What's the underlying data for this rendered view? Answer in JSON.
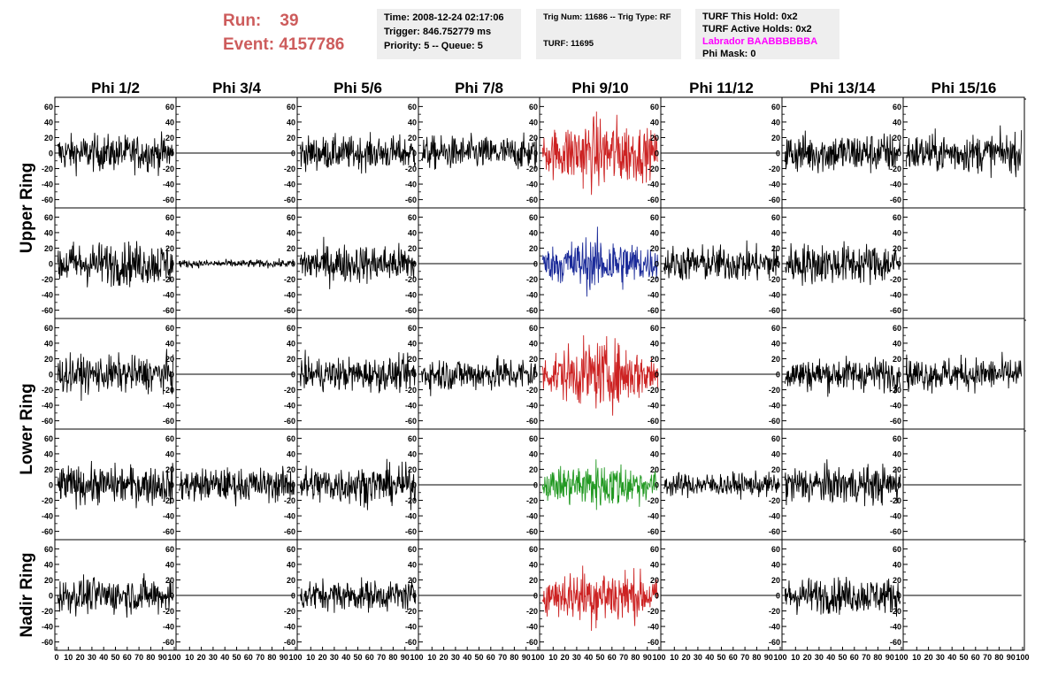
{
  "header": {
    "run_label": "Run:",
    "run_value": "39",
    "event_label": "Event:",
    "event_value": "4157786"
  },
  "info_time": {
    "time": "Time: 2008-12-24 02:17:06",
    "trigger": "Trigger: 846.752779 ms",
    "priority": "Priority: 5 -- Queue: 5"
  },
  "info_trig": {
    "trig": "Trig Num: 11686 -- Trig Type: RF",
    "turf": "TURF: 11695"
  },
  "info_turf": {
    "this_hold": "TURF This Hold: 0x2",
    "active_holds": "TURF Active Holds: 0x2",
    "labrador": "Labrador BAABBBBBBA",
    "phi_mask": "Phi Mask: 0"
  },
  "colors": {
    "header_red": "#cd5c5c",
    "labrador": "#ff00ff",
    "trace_black": "#000000",
    "trace_red": "#cc2222",
    "trace_blue": "#1a2a99",
    "trace_green": "#229922"
  },
  "chart_data": {
    "type": "line",
    "columns": [
      "Phi 1/2",
      "Phi 3/4",
      "Phi 5/6",
      "Phi 7/8",
      "Phi 9/10",
      "Phi 11/12",
      "Phi 13/14",
      "Phi 15/16"
    ],
    "row_groups": [
      {
        "label": "Upper Ring",
        "rows": [
          0,
          1
        ]
      },
      {
        "label": "Lower Ring",
        "rows": [
          2,
          3
        ]
      },
      {
        "label": "Nadir Ring",
        "rows": [
          4
        ]
      }
    ],
    "xlim": [
      0,
      100
    ],
    "ylim": [
      -65,
      65
    ],
    "y_ticks": [
      -60,
      -40,
      -20,
      0,
      20,
      40,
      60
    ],
    "x_tick_labels": [
      "0",
      "10",
      "20",
      "30",
      "40",
      "50",
      "60",
      "70",
      "80",
      "90",
      "100"
    ],
    "panels": [
      [
        {
          "amp": 14,
          "color": "black"
        },
        {
          "amp": 0,
          "color": "black"
        },
        {
          "amp": 13,
          "color": "black"
        },
        {
          "amp": 13,
          "color": "black"
        },
        {
          "amp": 24,
          "color": "red"
        },
        {
          "amp": 0,
          "color": "black"
        },
        {
          "amp": 16,
          "color": "black"
        },
        {
          "amp": 15,
          "color": "black"
        }
      ],
      [
        {
          "amp": 17,
          "color": "black"
        },
        {
          "amp": 3,
          "color": "black"
        },
        {
          "amp": 15,
          "color": "black"
        },
        {
          "amp": 0,
          "color": "black"
        },
        {
          "amp": 18,
          "color": "blue"
        },
        {
          "amp": 14,
          "color": "black"
        },
        {
          "amp": 16,
          "color": "black"
        },
        {
          "amp": 0,
          "color": "black"
        }
      ],
      [
        {
          "amp": 14,
          "color": "black"
        },
        {
          "amp": 0,
          "color": "black"
        },
        {
          "amp": 13,
          "color": "black"
        },
        {
          "amp": 13,
          "color": "black"
        },
        {
          "amp": 22,
          "color": "red"
        },
        {
          "amp": 0,
          "color": "black"
        },
        {
          "amp": 13,
          "color": "black"
        },
        {
          "amp": 13,
          "color": "black"
        }
      ],
      [
        {
          "amp": 15,
          "color": "black"
        },
        {
          "amp": 13,
          "color": "black"
        },
        {
          "amp": 15,
          "color": "black"
        },
        {
          "amp": 0,
          "color": "black"
        },
        {
          "amp": 16,
          "color": "green"
        },
        {
          "amp": 9,
          "color": "black"
        },
        {
          "amp": 15,
          "color": "black"
        },
        {
          "amp": 0,
          "color": "black"
        }
      ],
      [
        {
          "amp": 14,
          "color": "black"
        },
        {
          "amp": 0,
          "color": "black"
        },
        {
          "amp": 12,
          "color": "black"
        },
        {
          "amp": 0,
          "color": "black"
        },
        {
          "amp": 20,
          "color": "red"
        },
        {
          "amp": 0,
          "color": "black"
        },
        {
          "amp": 14,
          "color": "black"
        },
        {
          "amp": 0,
          "color": "black"
        }
      ]
    ]
  }
}
